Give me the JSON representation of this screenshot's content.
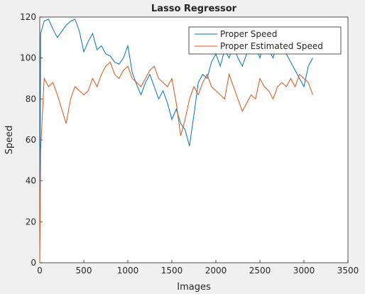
{
  "chart_data": {
    "type": "line",
    "title": "Lasso Regressor",
    "x_label": "Images",
    "y_label": "Speed",
    "x": [
      0,
      10,
      50,
      100,
      150,
      200,
      250,
      300,
      350,
      400,
      450,
      500,
      550,
      600,
      650,
      700,
      750,
      800,
      850,
      900,
      950,
      1000,
      1050,
      1100,
      1150,
      1200,
      1250,
      1300,
      1350,
      1400,
      1450,
      1500,
      1550,
      1600,
      1650,
      1700,
      1750,
      1800,
      1850,
      1900,
      1950,
      2000,
      2050,
      2100,
      2150,
      2200,
      2250,
      2300,
      2350,
      2400,
      2450,
      2500,
      2550,
      2600,
      2650,
      2700,
      2750,
      2800,
      2850,
      2900,
      2950,
      3000,
      3050,
      3100
    ],
    "series": [
      {
        "name": "Proper Speed",
        "color": "#0072bd",
        "values": [
          5,
          112,
          118,
          119,
          114,
          110,
          113,
          116,
          118,
          119,
          113,
          103,
          108,
          112,
          104,
          106,
          102,
          101,
          98,
          97,
          100,
          106,
          93,
          87,
          82,
          88,
          92,
          86,
          80,
          84,
          78,
          70,
          75,
          68,
          65,
          57,
          72,
          88,
          92,
          90,
          98,
          102,
          96,
          104,
          100,
          106,
          100,
          96,
          102,
          107,
          106,
          100,
          108,
          104,
          100,
          108,
          105,
          102,
          98,
          94,
          90,
          86,
          96,
          100
        ]
      },
      {
        "name": "Proper Estimated Speed",
        "color": "#d95319",
        "values": [
          0,
          55,
          90,
          86,
          88,
          82,
          75,
          68,
          80,
          86,
          84,
          82,
          84,
          90,
          86,
          92,
          96,
          98,
          92,
          90,
          94,
          96,
          90,
          88,
          86,
          90,
          94,
          96,
          90,
          88,
          86,
          90,
          78,
          62,
          70,
          80,
          86,
          82,
          88,
          92,
          86,
          84,
          82,
          80,
          92,
          86,
          80,
          74,
          78,
          82,
          80,
          90,
          86,
          84,
          80,
          86,
          88,
          86,
          90,
          86,
          92,
          90,
          88,
          82
        ]
      }
    ],
    "xlim": [
      0,
      3500
    ],
    "xticks": [
      0,
      500,
      1000,
      1500,
      2000,
      2500,
      3000,
      3500
    ],
    "ylim": [
      0,
      120
    ],
    "yticks": [
      0,
      20,
      40,
      60,
      80,
      100,
      120
    ],
    "legend": "northeast"
  }
}
